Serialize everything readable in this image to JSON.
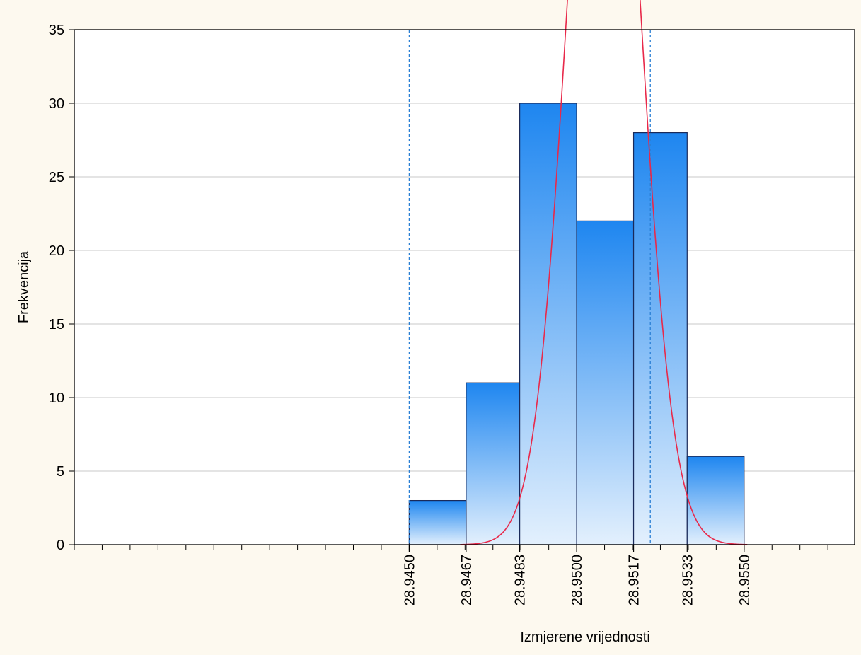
{
  "chart_data": {
    "type": "bar",
    "title": "",
    "xlabel": "Izmjerene vrijednosti",
    "ylabel": "Frekvencija",
    "ylim": [
      0,
      35
    ],
    "yticks": [
      0,
      5,
      10,
      15,
      20,
      25,
      30,
      35
    ],
    "bin_width": 0.0016667,
    "bins": [
      {
        "x0": 28.945,
        "x1": 28.9467,
        "value": 3
      },
      {
        "x0": 28.9467,
        "x1": 28.9483,
        "value": 11
      },
      {
        "x0": 28.9483,
        "x1": 28.95,
        "value": 30
      },
      {
        "x0": 28.95,
        "x1": 28.9517,
        "value": 22
      },
      {
        "x0": 28.9517,
        "x1": 28.9533,
        "value": 28
      },
      {
        "x0": 28.9533,
        "x1": 28.955,
        "value": 6
      }
    ],
    "xtick_labels": [
      {
        "x": 28.945,
        "label": "28.9450"
      },
      {
        "x": 28.9467,
        "label": "28.9467"
      },
      {
        "x": 28.9483,
        "label": "28.9483"
      },
      {
        "x": 28.95,
        "label": "28.9500"
      },
      {
        "x": 28.9517,
        "label": "28.9517"
      },
      {
        "x": 28.9533,
        "label": "28.9533"
      },
      {
        "x": 28.955,
        "label": "28.9550"
      }
    ],
    "xlim": [
      28.935,
      28.9583
    ],
    "spec_limits": [
      28.945,
      28.9522
    ],
    "normal_curve": {
      "mean": 28.95081,
      "sd": 0.00102,
      "n": 100
    },
    "grid": true,
    "colors": {
      "bar_top": "#1e86f0",
      "bar_bottom": "#e3f0fd",
      "bar_edge": "#1a2a5a",
      "curve": "#e8294a",
      "limit_line": "#2a7fd4",
      "grid": "#c8c8c8",
      "plot_bg": "#ffffff",
      "page_bg": "#fdf9ef"
    }
  }
}
